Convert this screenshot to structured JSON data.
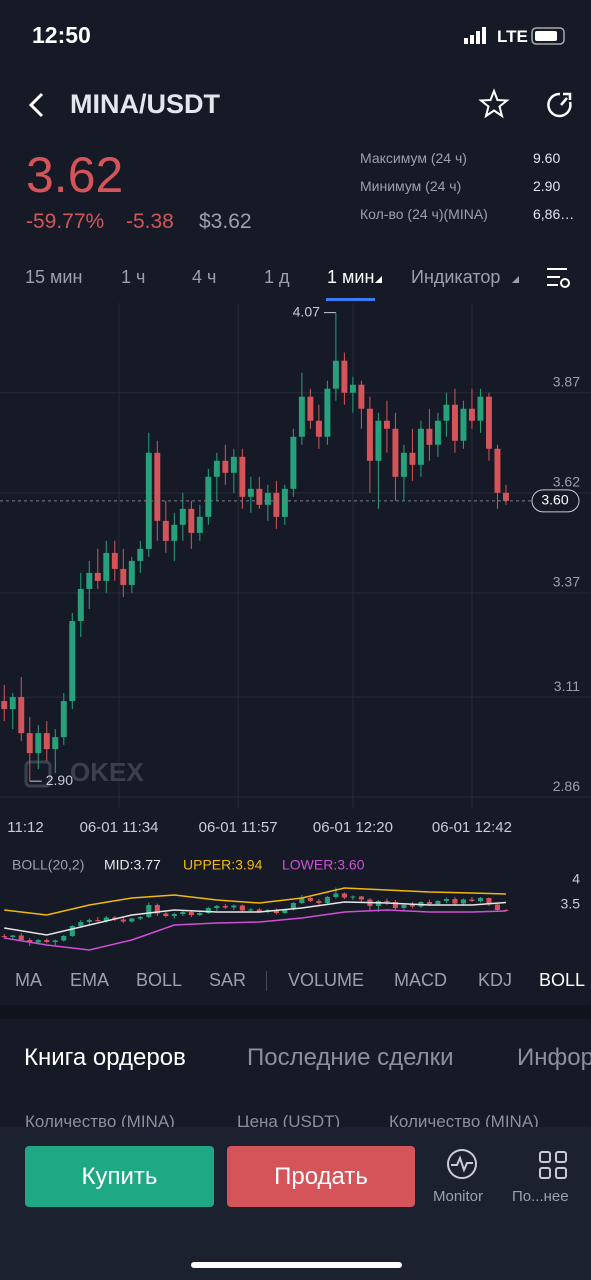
{
  "status_bar": {
    "time": "12:50",
    "network": "LTE"
  },
  "header": {
    "title": "MINA/USDT"
  },
  "ticker": {
    "price": "3.62",
    "change_pct": "-59.77%",
    "change": "-5.38",
    "usd_price": "$3.62",
    "stats": [
      {
        "label": "Максимум (24 ч)",
        "value": "9.60"
      },
      {
        "label": "Минимум (24 ч)",
        "value": "2.90"
      },
      {
        "label": "Кол-во (24 ч)(MINA)",
        "value": "6,86…"
      }
    ]
  },
  "timeframes": [
    "15 мин",
    "1 ч",
    "4 ч",
    "1 д",
    "1 мин",
    "Индикатор"
  ],
  "chart_data": [
    {
      "type": "candlestick",
      "watermark": "OKEX",
      "up_color": "#26a17b",
      "down_color": "#d4545a",
      "ylim": [
        2.833,
        4.094
      ],
      "yticks": [
        3.87,
        3.62,
        3.37,
        3.11,
        2.86
      ],
      "xlim": [
        -0.5,
        69
      ],
      "xticks": [
        {
          "value": 2.5,
          "label": "11:12"
        },
        {
          "value": 13.5,
          "label": "06-01 11:34"
        },
        {
          "value": 27.5,
          "label": "06-01 11:57"
        },
        {
          "value": 41,
          "label": "06-01 12:20"
        },
        {
          "value": 55,
          "label": "06-01 12:42"
        }
      ],
      "high_label": {
        "x": 39,
        "value": 4.07
      },
      "low_label": {
        "x": 3,
        "value": 2.9,
        "label": "2.90"
      },
      "last_price": {
        "value": 3.6,
        "label": "3.60"
      },
      "ohlc": [
        [
          3.1,
          3.14,
          3.05,
          3.08
        ],
        [
          3.08,
          3.12,
          3.03,
          3.11
        ],
        [
          3.11,
          3.16,
          3.0,
          3.02
        ],
        [
          3.02,
          3.06,
          2.9,
          2.97
        ],
        [
          2.97,
          3.04,
          2.93,
          3.02
        ],
        [
          3.02,
          3.05,
          2.95,
          2.98
        ],
        [
          2.98,
          3.03,
          2.92,
          3.01
        ],
        [
          3.01,
          3.12,
          2.99,
          3.1
        ],
        [
          3.1,
          3.32,
          3.08,
          3.3
        ],
        [
          3.3,
          3.42,
          3.26,
          3.38
        ],
        [
          3.38,
          3.45,
          3.33,
          3.42
        ],
        [
          3.42,
          3.48,
          3.38,
          3.4
        ],
        [
          3.4,
          3.5,
          3.37,
          3.47
        ],
        [
          3.47,
          3.5,
          3.4,
          3.43
        ],
        [
          3.43,
          3.48,
          3.36,
          3.39
        ],
        [
          3.39,
          3.46,
          3.37,
          3.45
        ],
        [
          3.45,
          3.5,
          3.42,
          3.48
        ],
        [
          3.48,
          3.77,
          3.46,
          3.72
        ],
        [
          3.72,
          3.75,
          3.5,
          3.55
        ],
        [
          3.55,
          3.6,
          3.47,
          3.5
        ],
        [
          3.5,
          3.57,
          3.45,
          3.54
        ],
        [
          3.54,
          3.62,
          3.5,
          3.58
        ],
        [
          3.58,
          3.6,
          3.48,
          3.52
        ],
        [
          3.52,
          3.59,
          3.5,
          3.56
        ],
        [
          3.56,
          3.68,
          3.54,
          3.66
        ],
        [
          3.66,
          3.72,
          3.6,
          3.7
        ],
        [
          3.7,
          3.74,
          3.64,
          3.67
        ],
        [
          3.67,
          3.73,
          3.62,
          3.71
        ],
        [
          3.71,
          3.73,
          3.58,
          3.61
        ],
        [
          3.61,
          3.66,
          3.57,
          3.63
        ],
        [
          3.63,
          3.66,
          3.58,
          3.59
        ],
        [
          3.59,
          3.64,
          3.55,
          3.62
        ],
        [
          3.62,
          3.65,
          3.53,
          3.56
        ],
        [
          3.56,
          3.64,
          3.54,
          3.63
        ],
        [
          3.63,
          3.78,
          3.61,
          3.76
        ],
        [
          3.76,
          3.92,
          3.74,
          3.86
        ],
        [
          3.86,
          3.88,
          3.78,
          3.8
        ],
        [
          3.8,
          3.84,
          3.73,
          3.76
        ],
        [
          3.76,
          3.9,
          3.74,
          3.88
        ],
        [
          3.88,
          4.07,
          3.85,
          3.95
        ],
        [
          3.95,
          3.97,
          3.84,
          3.87
        ],
        [
          3.87,
          3.91,
          3.82,
          3.89
        ],
        [
          3.89,
          3.9,
          3.78,
          3.83
        ],
        [
          3.83,
          3.86,
          3.62,
          3.7
        ],
        [
          3.7,
          3.82,
          3.58,
          3.8
        ],
        [
          3.8,
          3.85,
          3.72,
          3.78
        ],
        [
          3.78,
          3.82,
          3.6,
          3.66
        ],
        [
          3.66,
          3.74,
          3.6,
          3.72
        ],
        [
          3.72,
          3.78,
          3.65,
          3.69
        ],
        [
          3.69,
          3.8,
          3.66,
          3.78
        ],
        [
          3.78,
          3.83,
          3.7,
          3.74
        ],
        [
          3.74,
          3.82,
          3.71,
          3.8
        ],
        [
          3.8,
          3.87,
          3.76,
          3.84
        ],
        [
          3.84,
          3.88,
          3.72,
          3.75
        ],
        [
          3.75,
          3.85,
          3.73,
          3.83
        ],
        [
          3.83,
          3.88,
          3.78,
          3.8
        ],
        [
          3.8,
          3.88,
          3.77,
          3.86
        ],
        [
          3.86,
          3.87,
          3.7,
          3.73
        ],
        [
          3.73,
          3.74,
          3.58,
          3.62
        ],
        [
          3.62,
          3.64,
          3.59,
          3.6
        ]
      ]
    },
    {
      "type": "line",
      "title": "BOLL(20,2)",
      "ylim": [
        2.72,
        4.72
      ],
      "yticks": [
        4,
        3.5
      ],
      "xlim": [
        -0.5,
        69
      ],
      "x": [
        0,
        5,
        10,
        15,
        20,
        25,
        30,
        35,
        40,
        45,
        50,
        55,
        59
      ],
      "series": [
        {
          "name": "MID:3.77",
          "color": "#e6e6e6",
          "values": [
            3.26,
            3.12,
            3.32,
            3.52,
            3.62,
            3.58,
            3.58,
            3.66,
            3.78,
            3.76,
            3.72,
            3.72,
            3.77
          ]
        },
        {
          "name": "UPPER:3.94",
          "color": "#f0b90b",
          "values": [
            3.62,
            3.52,
            3.72,
            3.86,
            3.92,
            3.82,
            3.76,
            3.86,
            4.06,
            4.02,
            3.98,
            3.96,
            3.94
          ]
        },
        {
          "name": "LOWER:3.60",
          "color": "#d04fd6",
          "values": [
            3.06,
            2.92,
            2.82,
            3.02,
            3.32,
            3.36,
            3.38,
            3.46,
            3.58,
            3.62,
            3.58,
            3.58,
            3.6
          ]
        }
      ]
    }
  ],
  "indicator_tabs": [
    "MA",
    "EMA",
    "BOLL",
    "SAR",
    "VOLUME",
    "MACD",
    "KDJ",
    "BOLL"
  ],
  "section_tabs": [
    "Книга ордеров",
    "Последние сделки",
    "Инфор"
  ],
  "columns": [
    "Количество (MINA)",
    "Цена (USDT)",
    "Количество (MINA)"
  ],
  "actions": {
    "buy": "Купить",
    "sell": "Продать",
    "monitor": "Monitor",
    "more": "По...нее"
  }
}
